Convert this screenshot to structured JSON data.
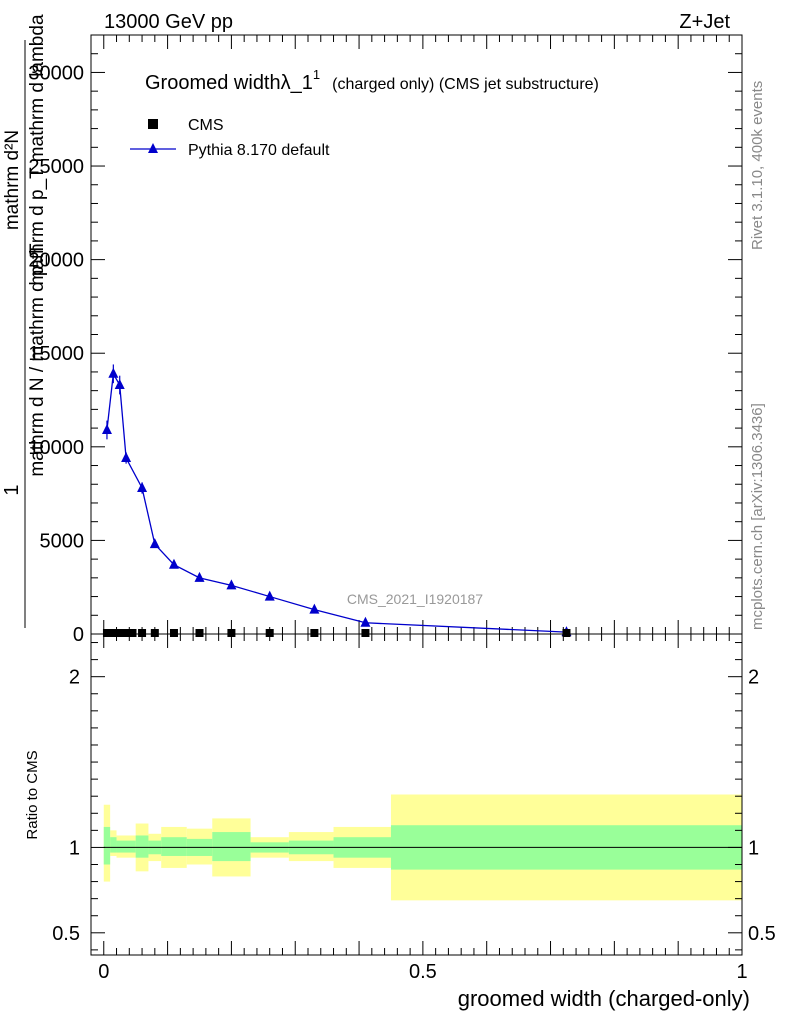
{
  "header": {
    "energy_label": "13000 GeV pp",
    "process_label": "Z+Jet"
  },
  "side_labels": {
    "rivet": "Rivet 3.1.10,  400k events",
    "mcplots": "mcplots.cern.ch [arXiv:1306.3436]"
  },
  "chart_data": [
    {
      "type": "scatter",
      "title_main": "Groomed width",
      "title_lambda": "λ_1",
      "title_sup": "1",
      "title_suffix": "(charged only) (CMS jet substructure)",
      "analysis_watermark": "CMS_2021_I1920187",
      "ylabel_parts": [
        "1",
        "mathrm d N / mathrm d p_T",
        "mathrm d²N",
        "mathrm d p_T mathrm d lambda"
      ],
      "ylim": [
        0,
        32000
      ],
      "yticks": [
        0,
        5000,
        10000,
        15000,
        20000,
        25000,
        30000
      ],
      "ytick_labels": [
        "0",
        "5000",
        "10000",
        "15000",
        "20000",
        "25000",
        "30000"
      ],
      "legend": [
        {
          "name": "CMS",
          "color": "#000000",
          "marker": "square"
        },
        {
          "name": "Pythia 8.170 default",
          "color": "#0000cc",
          "marker": "triangle"
        }
      ],
      "series": [
        {
          "name": "CMS",
          "color": "#000000",
          "x": [
            0.005,
            0.015,
            0.025,
            0.035,
            0.045,
            0.06,
            0.08,
            0.11,
            0.15,
            0.2,
            0.26,
            0.33,
            0.41,
            0.725
          ],
          "y": [
            0,
            0,
            0,
            0,
            0,
            0,
            0,
            0,
            0,
            0,
            0,
            0,
            0,
            0
          ]
        },
        {
          "name": "Pythia 8.170 default",
          "color": "#0000cc",
          "x": [
            0.005,
            0.015,
            0.025,
            0.035,
            0.06,
            0.08,
            0.11,
            0.15,
            0.2,
            0.26,
            0.33,
            0.41,
            0.725
          ],
          "y": [
            10900,
            13900,
            13300,
            9400,
            7800,
            4800,
            3700,
            3000,
            2600,
            2000,
            1300,
            600,
            100
          ],
          "yerr": [
            500,
            500,
            500,
            300,
            300,
            200,
            100,
            100,
            100,
            100,
            100,
            50,
            30
          ]
        }
      ]
    },
    {
      "type": "area",
      "ylabel": "Ratio to CMS",
      "xlabel": "groomed width (charged-only)",
      "xlim": [
        -0.02,
        1.0
      ],
      "ylim": [
        0.37,
        2.25
      ],
      "yticks": [
        0.5,
        1,
        2
      ],
      "ytick_labels": [
        "0.5",
        "1",
        "2"
      ],
      "xticks": [
        0,
        0.5,
        1
      ],
      "xtick_labels": [
        "0",
        "0.5",
        "1"
      ],
      "bins": [
        {
          "lo": 0.0,
          "hi": 0.01,
          "y1lo": 0.9,
          "y1hi": 1.12,
          "y2lo": 0.8,
          "y2hi": 1.25
        },
        {
          "lo": 0.01,
          "hi": 0.02,
          "y1lo": 0.97,
          "y1hi": 1.06,
          "y2lo": 0.95,
          "y2hi": 1.1
        },
        {
          "lo": 0.02,
          "hi": 0.05,
          "y1lo": 0.97,
          "y1hi": 1.04,
          "y2lo": 0.94,
          "y2hi": 1.07
        },
        {
          "lo": 0.05,
          "hi": 0.07,
          "y1lo": 0.94,
          "y1hi": 1.07,
          "y2lo": 0.86,
          "y2hi": 1.14
        },
        {
          "lo": 0.07,
          "hi": 0.09,
          "y1lo": 0.96,
          "y1hi": 1.04,
          "y2lo": 0.92,
          "y2hi": 1.08
        },
        {
          "lo": 0.09,
          "hi": 0.13,
          "y1lo": 0.95,
          "y1hi": 1.06,
          "y2lo": 0.88,
          "y2hi": 1.12
        },
        {
          "lo": 0.13,
          "hi": 0.17,
          "y1lo": 0.95,
          "y1hi": 1.05,
          "y2lo": 0.9,
          "y2hi": 1.11
        },
        {
          "lo": 0.17,
          "hi": 0.23,
          "y1lo": 0.92,
          "y1hi": 1.09,
          "y2lo": 0.83,
          "y2hi": 1.17
        },
        {
          "lo": 0.23,
          "hi": 0.29,
          "y1lo": 0.97,
          "y1hi": 1.03,
          "y2lo": 0.94,
          "y2hi": 1.06
        },
        {
          "lo": 0.29,
          "hi": 0.36,
          "y1lo": 0.96,
          "y1hi": 1.04,
          "y2lo": 0.92,
          "y2hi": 1.09
        },
        {
          "lo": 0.36,
          "hi": 0.45,
          "y1lo": 0.94,
          "y1hi": 1.06,
          "y2lo": 0.88,
          "y2hi": 1.12
        },
        {
          "lo": 0.45,
          "hi": 1.0,
          "y1lo": 0.87,
          "y1hi": 1.13,
          "y2lo": 0.69,
          "y2hi": 1.31
        }
      ],
      "reference_line": 1,
      "band_colors": {
        "inner": "#99ff99",
        "outer": "#ffff99"
      }
    }
  ]
}
